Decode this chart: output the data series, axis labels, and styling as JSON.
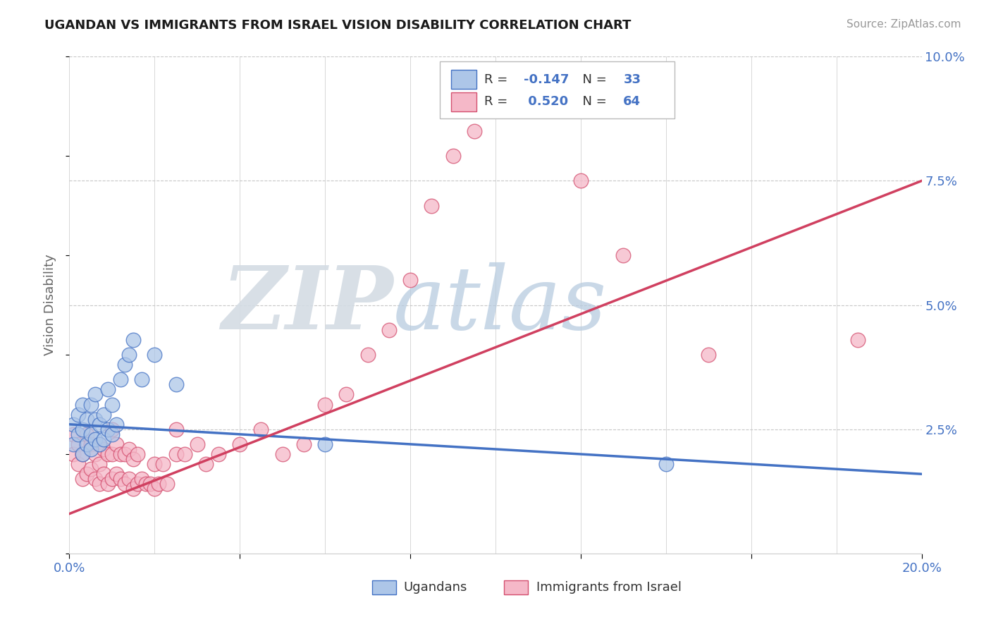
{
  "title": "UGANDAN VS IMMIGRANTS FROM ISRAEL VISION DISABILITY CORRELATION CHART",
  "source": "Source: ZipAtlas.com",
  "ylabel": "Vision Disability",
  "xlim": [
    0.0,
    0.2
  ],
  "ylim": [
    0.0,
    0.1
  ],
  "ugandan_color": "#adc6e8",
  "ugandan_edge": "#4472c4",
  "israel_color": "#f5b8c8",
  "israel_edge": "#d45070",
  "ugandan_line_color": "#4472c4",
  "israel_line_color": "#d04060",
  "watermark_zip_color": "#d0d8e0",
  "watermark_atlas_color": "#b8cce0",
  "background_color": "#ffffff",
  "grid_color": "#c8c8c8",
  "ugandans_x": [
    0.001,
    0.001,
    0.002,
    0.002,
    0.003,
    0.003,
    0.003,
    0.004,
    0.004,
    0.005,
    0.005,
    0.005,
    0.006,
    0.006,
    0.006,
    0.007,
    0.007,
    0.008,
    0.008,
    0.009,
    0.009,
    0.01,
    0.01,
    0.011,
    0.012,
    0.013,
    0.014,
    0.015,
    0.017,
    0.02,
    0.025,
    0.06,
    0.14
  ],
  "ugandans_y": [
    0.022,
    0.026,
    0.024,
    0.028,
    0.02,
    0.025,
    0.03,
    0.022,
    0.027,
    0.021,
    0.024,
    0.03,
    0.023,
    0.027,
    0.032,
    0.022,
    0.026,
    0.023,
    0.028,
    0.025,
    0.033,
    0.024,
    0.03,
    0.026,
    0.035,
    0.038,
    0.04,
    0.043,
    0.035,
    0.04,
    0.034,
    0.022,
    0.018
  ],
  "israel_x": [
    0.001,
    0.001,
    0.002,
    0.002,
    0.003,
    0.003,
    0.004,
    0.004,
    0.005,
    0.005,
    0.006,
    0.006,
    0.007,
    0.007,
    0.007,
    0.008,
    0.008,
    0.009,
    0.009,
    0.01,
    0.01,
    0.01,
    0.011,
    0.011,
    0.012,
    0.012,
    0.013,
    0.013,
    0.014,
    0.014,
    0.015,
    0.015,
    0.016,
    0.016,
    0.017,
    0.018,
    0.019,
    0.02,
    0.02,
    0.021,
    0.022,
    0.023,
    0.025,
    0.025,
    0.027,
    0.03,
    0.032,
    0.035,
    0.04,
    0.045,
    0.05,
    0.055,
    0.06,
    0.065,
    0.07,
    0.075,
    0.08,
    0.085,
    0.09,
    0.095,
    0.12,
    0.13,
    0.15,
    0.185
  ],
  "israel_y": [
    0.02,
    0.024,
    0.018,
    0.022,
    0.015,
    0.02,
    0.016,
    0.024,
    0.017,
    0.022,
    0.015,
    0.02,
    0.014,
    0.018,
    0.022,
    0.016,
    0.021,
    0.014,
    0.02,
    0.015,
    0.02,
    0.025,
    0.016,
    0.022,
    0.015,
    0.02,
    0.014,
    0.02,
    0.015,
    0.021,
    0.013,
    0.019,
    0.014,
    0.02,
    0.015,
    0.014,
    0.014,
    0.013,
    0.018,
    0.014,
    0.018,
    0.014,
    0.02,
    0.025,
    0.02,
    0.022,
    0.018,
    0.02,
    0.022,
    0.025,
    0.02,
    0.022,
    0.03,
    0.032,
    0.04,
    0.045,
    0.055,
    0.07,
    0.08,
    0.085,
    0.075,
    0.06,
    0.04,
    0.043
  ],
  "ug_trend_x0": 0.0,
  "ug_trend_y0": 0.026,
  "ug_trend_x1": 0.2,
  "ug_trend_y1": 0.016,
  "is_trend_x0": 0.0,
  "is_trend_y0": 0.008,
  "is_trend_x1": 0.2,
  "is_trend_y1": 0.075
}
